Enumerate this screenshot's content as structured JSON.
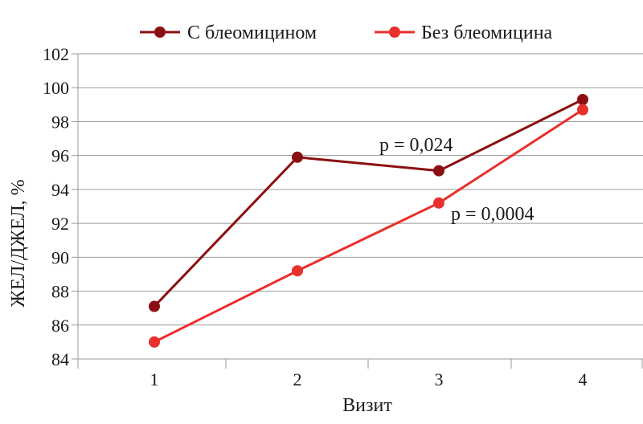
{
  "chart_data": {
    "type": "line",
    "x": [
      "1",
      "2",
      "3",
      "4"
    ],
    "xlabel": "Визит",
    "ylabel": "ЖЕЛ/ДЖЕЛ, %",
    "ylim": [
      84,
      102
    ],
    "yticks": [
      84,
      86,
      88,
      90,
      92,
      94,
      96,
      98,
      100,
      102
    ],
    "grid": "horizontal",
    "legend_position": "top",
    "series": [
      {
        "name": "С блеомицином",
        "color": "#8b0f12",
        "values": [
          87.1,
          95.9,
          95.1,
          99.3
        ]
      },
      {
        "name": "Без блеомицина",
        "color": "#e8302c",
        "values": [
          85.0,
          89.2,
          93.2,
          98.7
        ]
      }
    ],
    "annotations": [
      {
        "text": "p = 0,024",
        "series": 0
      },
      {
        "text": "p = 0,0004",
        "series": 1
      }
    ]
  }
}
